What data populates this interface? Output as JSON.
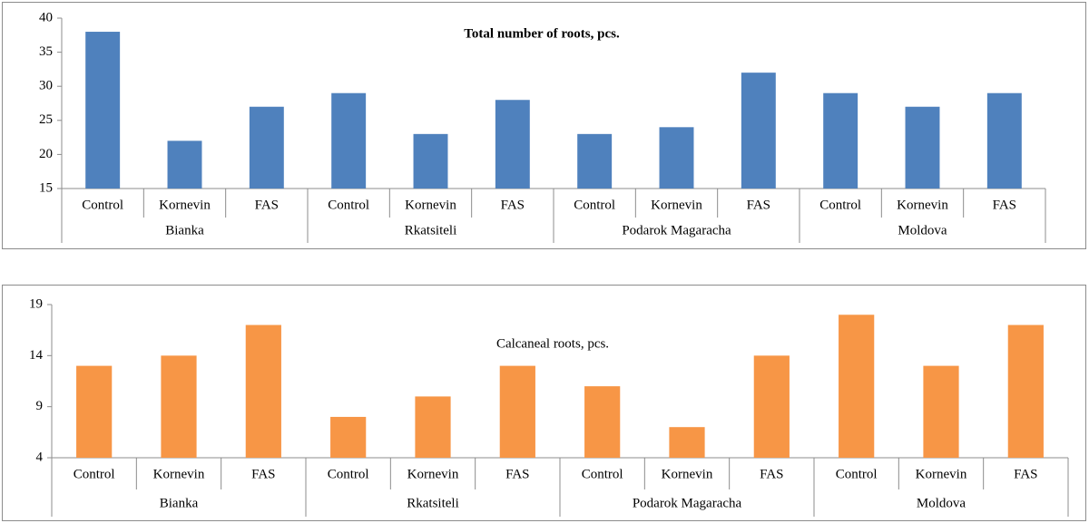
{
  "chart_data": [
    {
      "type": "bar",
      "title": "Total number of roots, pcs.",
      "title_bold": true,
      "categories": [
        "Control",
        "Kornevin",
        "FAS",
        "Control",
        "Kornevin",
        "FAS",
        "Control",
        "Kornevin",
        "FAS",
        "Control",
        "Kornevin",
        "FAS"
      ],
      "groups": [
        "Bianka",
        "Rkatsiteli",
        "Podarok Magaracha",
        "Moldova"
      ],
      "values": [
        38,
        22,
        27,
        29,
        23,
        28,
        23,
        24,
        32,
        29,
        27,
        29
      ],
      "color": "#4f81bd",
      "ylim": [
        15,
        40
      ],
      "yticks": [
        15,
        20,
        25,
        30,
        35,
        40
      ],
      "grid": false
    },
    {
      "type": "bar",
      "title": "Calcaneal roots, pcs.",
      "title_bold": false,
      "categories": [
        "Control",
        "Kornevin",
        "FAS",
        "Control",
        "Kornevin",
        "FAS",
        "Control",
        "Kornevin",
        "FAS",
        "Control",
        "Kornevin",
        "FAS"
      ],
      "groups": [
        "Bianka",
        "Rkatsiteli",
        "Podarok Magaracha",
        "Moldova"
      ],
      "values": [
        13,
        14,
        17,
        8,
        10,
        13,
        11,
        7,
        14,
        18,
        13,
        17
      ],
      "color": "#f79646",
      "ylim": [
        4,
        19
      ],
      "yticks": [
        4,
        9,
        14,
        19
      ],
      "grid": false
    }
  ]
}
